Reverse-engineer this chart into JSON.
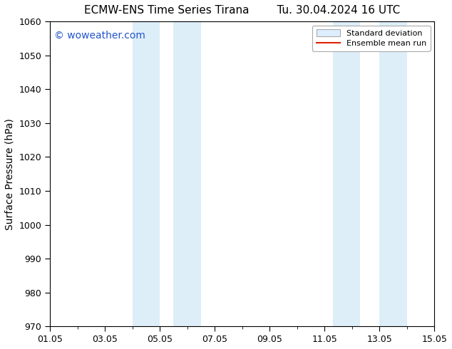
{
  "title": "ECMW-ENS Time Series Tirana        Tu. 30.04.2024 16 UTC",
  "ylabel": "Surface Pressure (hPa)",
  "ylim": [
    970,
    1060
  ],
  "yticks": [
    970,
    980,
    990,
    1000,
    1010,
    1020,
    1030,
    1040,
    1050,
    1060
  ],
  "xlim_start": 0,
  "xlim_end": 14,
  "xtick_positions": [
    0,
    2,
    4,
    6,
    8,
    10,
    12,
    14
  ],
  "xtick_labels": [
    "01.05",
    "03.05",
    "05.05",
    "07.05",
    "09.05",
    "11.05",
    "13.05",
    "15.05"
  ],
  "shaded_bands": [
    {
      "xmin": 3.0,
      "xmax": 4.0
    },
    {
      "xmin": 4.5,
      "xmax": 5.5
    },
    {
      "xmin": 10.3,
      "xmax": 11.3
    },
    {
      "xmin": 12.0,
      "xmax": 13.0
    }
  ],
  "shade_color": "#ddeef8",
  "background_color": "#ffffff",
  "plot_bg_color": "#ffffff",
  "watermark_text": "© woweather.com",
  "watermark_color": "#2255cc",
  "legend_entries": [
    "Standard deviation",
    "Ensemble mean run"
  ],
  "legend_patch_facecolor": "#ddeeff",
  "legend_patch_edgecolor": "#aaaaaa",
  "legend_line_color": "#dd2200",
  "title_fontsize": 11,
  "axis_label_fontsize": 10,
  "tick_fontsize": 9,
  "watermark_fontsize": 10
}
